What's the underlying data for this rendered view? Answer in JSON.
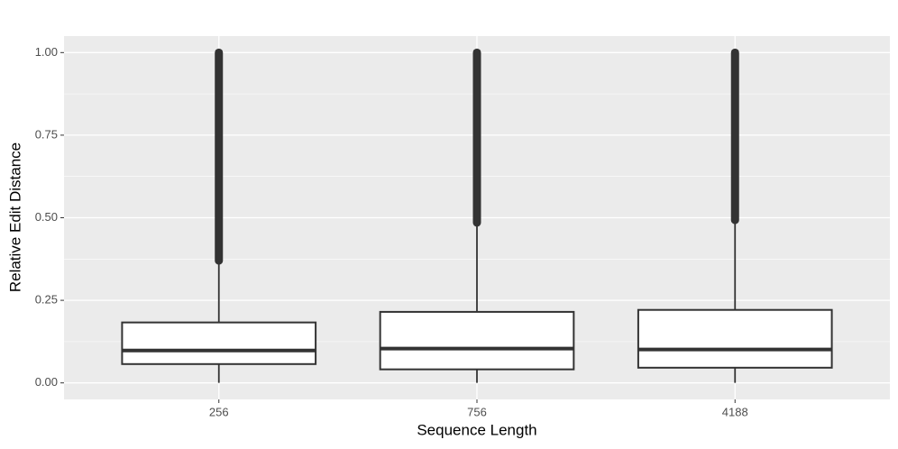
{
  "chart_data": {
    "type": "box",
    "x_label": "Sequence Length",
    "y_label": "Relative Edit Distance",
    "categories": [
      "256",
      "756",
      "4188"
    ],
    "boxes": [
      {
        "low": 0,
        "q1": 0.057,
        "median": 0.098,
        "q3": 0.183,
        "high": 0.368,
        "outliers": [
          0.37,
          1.0
        ]
      },
      {
        "low": 0,
        "q1": 0.041,
        "median": 0.104,
        "q3": 0.215,
        "high": 0.482,
        "outliers": [
          0.485,
          1.0
        ]
      },
      {
        "low": 0,
        "q1": 0.046,
        "median": 0.101,
        "q3": 0.221,
        "high": 0.49,
        "outliers": [
          0.493,
          1.0
        ]
      }
    ],
    "color": "#333333",
    "box_fill": "#ffffff",
    "panel_color": "#ebebeb",
    "ylim": [
      -0.05,
      1.05
    ],
    "yticks": [
      {
        "value": 0,
        "label": "0.00"
      },
      {
        "value": 0.25,
        "label": "0.25"
      },
      {
        "value": 0.5,
        "label": "0.50"
      },
      {
        "value": 0.75,
        "label": "0.75"
      },
      {
        "value": 1,
        "label": "1.00"
      }
    ],
    "grid": true
  }
}
